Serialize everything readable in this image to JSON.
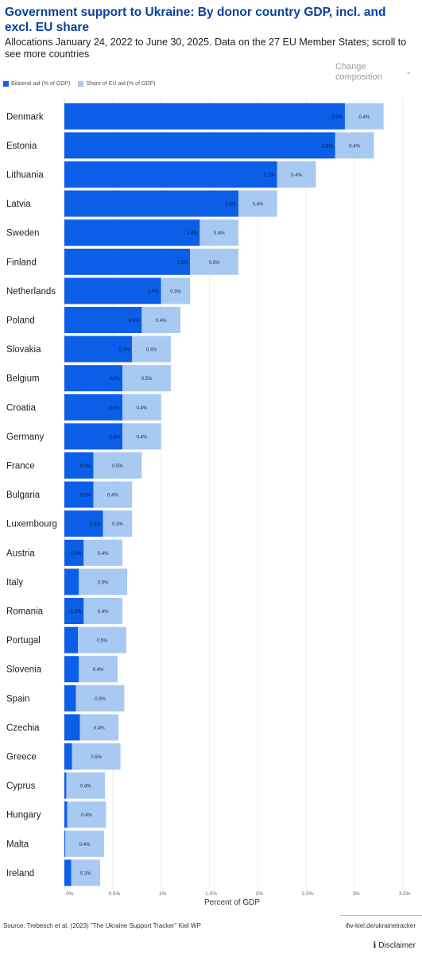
{
  "header": {
    "title": "Government support to Ukraine: By donor country GDP, incl. and excl. EU share",
    "subtitle": "Allocations January 24, 2022 to June 30, 2025. Data on the 27 EU Member States; scroll to see more countries",
    "change_composition": "Change composition"
  },
  "colors": {
    "bilateral": "#0b5ee8",
    "eu": "#a8c9f2",
    "grid": "#ededed"
  },
  "footer": {
    "source": "Source: Trebesch et al. (2023) \"The Ukraine Support Tracker\" Kiel WP",
    "link": "ifw-kiel.de/ukrainetracker",
    "disclaimer": "Disclaimer"
  },
  "chart_data": {
    "type": "bar",
    "orientation": "horizontal",
    "stacked": true,
    "legend_position": "top-left",
    "grid": true,
    "xlabel": "Percent of GDP",
    "xlim": [
      0,
      3.5
    ],
    "xticks": [
      0,
      0.5,
      1,
      1.5,
      2,
      2.5,
      3,
      3.5
    ],
    "xtick_labels": [
      "0%",
      "0.5%",
      "1%",
      "1.5%",
      "2%",
      "2.5%",
      "3%",
      "3.5%"
    ],
    "categories": [
      "Denmark",
      "Estonia",
      "Lithuania",
      "Latvia",
      "Sweden",
      "Finland",
      "Netherlands",
      "Poland",
      "Slovakia",
      "Belgium",
      "Croatia",
      "Germany",
      "France",
      "Bulgaria",
      "Luxembourg",
      "Austria",
      "Italy",
      "Romania",
      "Portugal",
      "Slovenia",
      "Spain",
      "Czechia",
      "Greece",
      "Cyprus",
      "Hungary",
      "Malta",
      "Ireland"
    ],
    "series": [
      {
        "name": "Bilateral aid (% of GDP)",
        "values": [
          2.9,
          2.8,
          2.2,
          1.8,
          1.4,
          1.3,
          1.0,
          0.8,
          0.7,
          0.6,
          0.6,
          0.6,
          0.3,
          0.3,
          0.4,
          0.2,
          0.15,
          0.2,
          0.14,
          0.15,
          0.12,
          0.16,
          0.08,
          0.02,
          0.03,
          0.01,
          0.07
        ],
        "labels": [
          "2.9%",
          "2.8%",
          "2.2%",
          "1.8%",
          "1.4%",
          "1.3%",
          "1.0%",
          "0.8%",
          "0.7%",
          "0.6%",
          "0.6%",
          "0.6%",
          "0.3%",
          "0.3%",
          "0.4%",
          "0.2%",
          "",
          "0.2%",
          "",
          "",
          "",
          "",
          "",
          "",
          "",
          "",
          ""
        ]
      },
      {
        "name": "Share of EU aid (% of GDP)",
        "values": [
          0.4,
          0.4,
          0.4,
          0.4,
          0.4,
          0.5,
          0.3,
          0.4,
          0.4,
          0.5,
          0.4,
          0.4,
          0.5,
          0.4,
          0.3,
          0.4,
          0.5,
          0.4,
          0.5,
          0.4,
          0.5,
          0.4,
          0.5,
          0.4,
          0.4,
          0.4,
          0.3
        ],
        "labels": [
          "0.4%",
          "0.4%",
          "0.4%",
          "0.4%",
          "0.4%",
          "0.5%",
          "0.3%",
          "0.4%",
          "0.4%",
          "0.5%",
          "0.4%",
          "0.4%",
          "0.5%",
          "0.4%",
          "0.3%",
          "0.4%",
          "0.5%",
          "0.4%",
          "0.5%",
          "0.4%",
          "0.5%",
          "0.4%",
          "0.5%",
          "0.4%",
          "0.4%",
          "0.4%",
          "0.3%"
        ]
      }
    ]
  }
}
